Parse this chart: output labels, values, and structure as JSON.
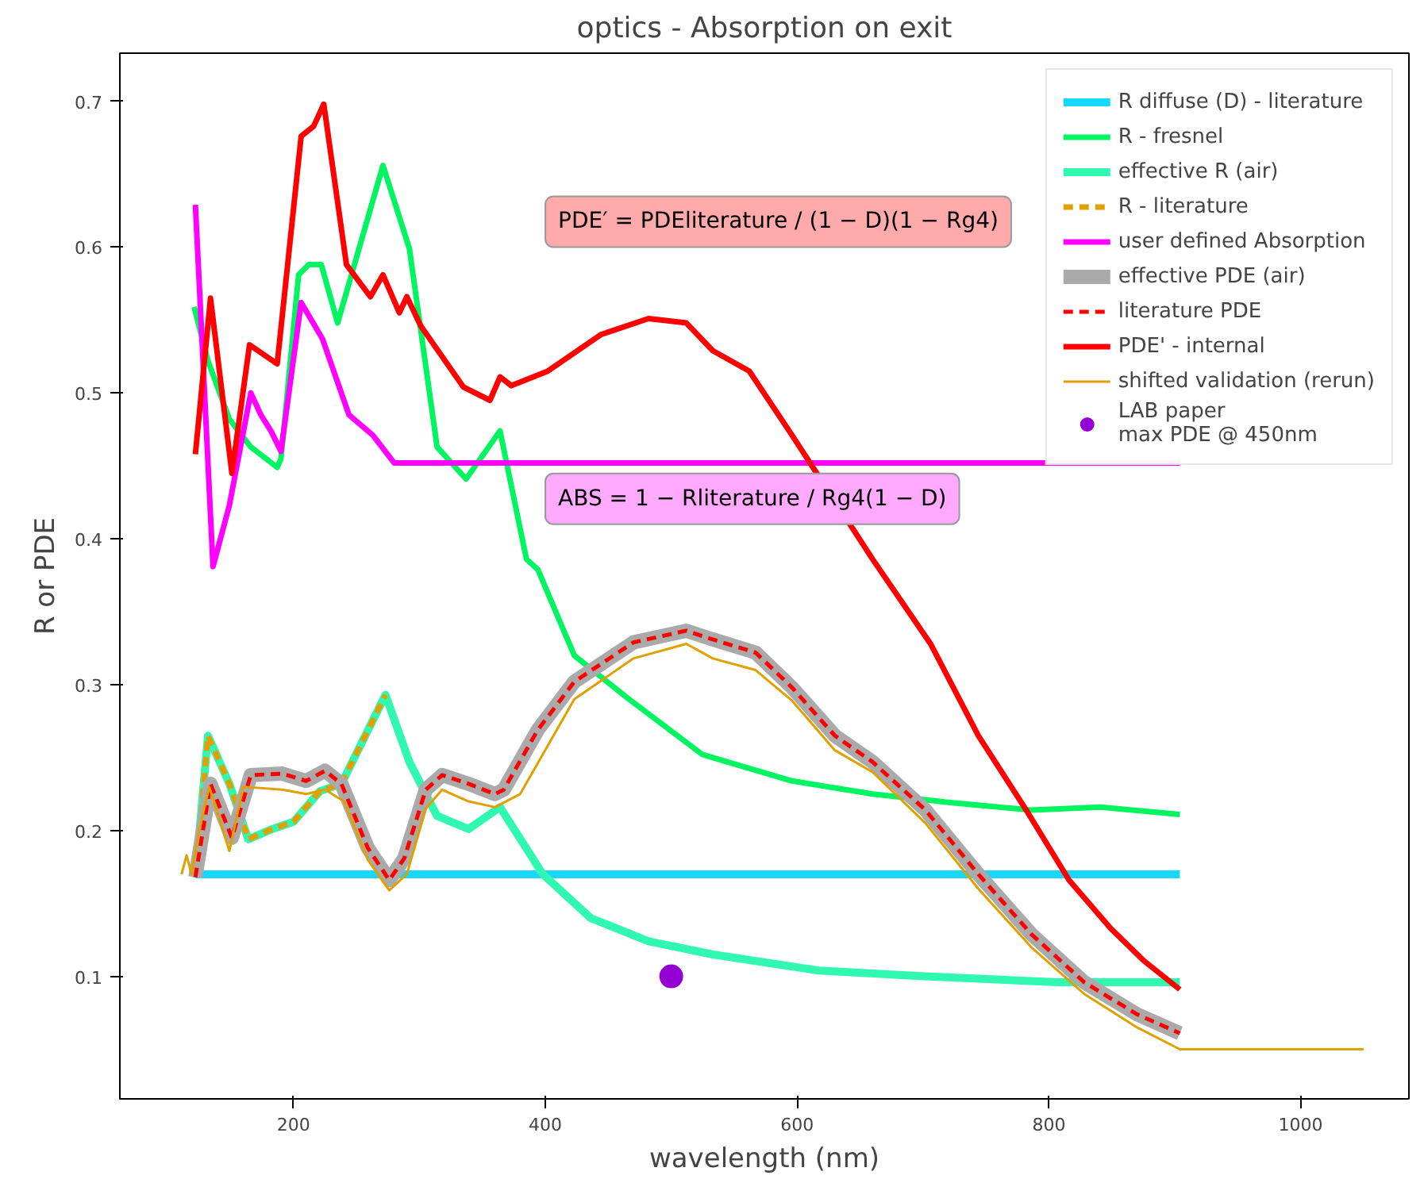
{
  "chart_data": {
    "type": "line",
    "title": "optics - Absorption on exit",
    "xlabel": "wavelength (nm)",
    "ylabel": "R or PDE",
    "xlim": [
      62,
      1086
    ],
    "ylim": [
      0.016,
      0.733
    ],
    "xticks": [
      200,
      400,
      600,
      800,
      1000
    ],
    "yticks": [
      0.1,
      0.2,
      0.3,
      0.4,
      0.5,
      0.6,
      0.7
    ],
    "grid": false,
    "legend": "top right",
    "annotations": [
      "PDE′ = PDEliterature / (1 − D)(1 − Rg4)",
      "ABS = 1 − Rliterature / Rg4(1 − D)"
    ],
    "series": [
      {
        "name": "R diffuse (D) - literature",
        "color": "#18d8ff",
        "x": [
          122,
          904
        ],
        "values": [
          0.17,
          0.17
        ]
      },
      {
        "name": "R - fresnel",
        "color": "#00f560",
        "x": [
          121,
          132,
          149,
          166,
          187,
          190,
          204,
          212,
          222,
          235,
          271,
          292,
          314,
          337,
          364,
          385,
          394,
          423,
          465,
          525,
          596,
          660,
          723,
          786,
          841,
          904
        ],
        "values": [
          0.559,
          0.522,
          0.482,
          0.463,
          0.449,
          0.455,
          0.581,
          0.588,
          0.588,
          0.548,
          0.656,
          0.599,
          0.463,
          0.441,
          0.474,
          0.386,
          0.379,
          0.32,
          0.291,
          0.252,
          0.234,
          0.225,
          0.219,
          0.214,
          0.216,
          0.211
        ]
      },
      {
        "name": "effective R (air)",
        "color": "#30f8b0",
        "x": [
          122,
          132,
          149,
          164,
          183,
          200,
          221,
          238,
          273,
          292,
          314,
          339,
          364,
          398,
          436,
          482,
          533,
          617,
          701,
          807,
          904
        ],
        "values": [
          0.168,
          0.265,
          0.232,
          0.194,
          0.201,
          0.206,
          0.227,
          0.232,
          0.293,
          0.247,
          0.21,
          0.201,
          0.216,
          0.17,
          0.14,
          0.124,
          0.115,
          0.104,
          0.1,
          0.096,
          0.096
        ]
      },
      {
        "name": "R - literature",
        "color": "#e0a000",
        "line_style": "dashed",
        "x": [
          122,
          132,
          149,
          164,
          183,
          200,
          221,
          238,
          273
        ],
        "values": [
          0.168,
          0.265,
          0.232,
          0.194,
          0.201,
          0.206,
          0.227,
          0.232,
          0.293
        ]
      },
      {
        "name": "user defined Absorption",
        "color": "#ff00ff",
        "x": [
          122,
          136,
          149,
          166,
          174,
          182,
          190,
          206,
          223,
          244,
          263,
          280,
          904
        ],
        "values": [
          0.629,
          0.381,
          0.423,
          0.5,
          0.485,
          0.474,
          0.46,
          0.562,
          0.537,
          0.485,
          0.471,
          0.452,
          0.452
        ]
      },
      {
        "name": "effective PDE (air)",
        "color": "#aaaaaa",
        "x": [
          122,
          134,
          151,
          166,
          191,
          210,
          225,
          238,
          259,
          276,
          288,
          305,
          318,
          339,
          360,
          367,
          394,
          423,
          470,
          491,
          512,
          533,
          567,
          596,
          630,
          660,
          702,
          744,
          786,
          828,
          870,
          904
        ],
        "values": [
          0.168,
          0.232,
          0.195,
          0.238,
          0.239,
          0.234,
          0.241,
          0.232,
          0.188,
          0.166,
          0.181,
          0.228,
          0.238,
          0.232,
          0.225,
          0.228,
          0.269,
          0.302,
          0.329,
          0.333,
          0.337,
          0.331,
          0.322,
          0.298,
          0.265,
          0.247,
          0.214,
          0.17,
          0.129,
          0.096,
          0.074,
          0.061
        ]
      },
      {
        "name": "literature PDE",
        "color": "#ff0000",
        "line_style": "dashed",
        "x": [
          122,
          134,
          151,
          166,
          191,
          210,
          225,
          238,
          259,
          276,
          288,
          305,
          318,
          339,
          360,
          367,
          394,
          423,
          470,
          491,
          512,
          533,
          567,
          596,
          630,
          660,
          702,
          744,
          786,
          828,
          870,
          904
        ],
        "values": [
          0.168,
          0.232,
          0.195,
          0.238,
          0.239,
          0.234,
          0.241,
          0.232,
          0.188,
          0.166,
          0.181,
          0.228,
          0.238,
          0.232,
          0.225,
          0.228,
          0.269,
          0.302,
          0.329,
          0.333,
          0.337,
          0.331,
          0.322,
          0.298,
          0.265,
          0.247,
          0.214,
          0.17,
          0.129,
          0.096,
          0.074,
          0.061
        ]
      },
      {
        "name": "PDE' - internal",
        "color": "#ff0000",
        "x": [
          122,
          134,
          151,
          165,
          187,
          206,
          216,
          224,
          242,
          261,
          271,
          284,
          290,
          301,
          335,
          356,
          364,
          373,
          402,
          444,
          482,
          512,
          533,
          562,
          596,
          660,
          706,
          744,
          782,
          816,
          849,
          875,
          904
        ],
        "values": [
          0.458,
          0.565,
          0.445,
          0.533,
          0.52,
          0.676,
          0.683,
          0.698,
          0.588,
          0.566,
          0.581,
          0.555,
          0.566,
          0.546,
          0.504,
          0.495,
          0.511,
          0.505,
          0.515,
          0.54,
          0.551,
          0.548,
          0.529,
          0.515,
          0.471,
          0.386,
          0.328,
          0.265,
          0.214,
          0.166,
          0.133,
          0.111,
          0.091
        ]
      },
      {
        "name": "shifted validation (rerun)",
        "color": "#e0a000",
        "x": [
          111,
          115,
          119,
          125,
          133,
          149,
          160,
          191,
          210,
          225,
          240,
          259,
          276,
          290,
          305,
          318,
          339,
          360,
          380,
          423,
          470,
          512,
          533,
          567,
          596,
          630,
          660,
          702,
          744,
          786,
          828,
          870,
          904,
          1050
        ],
        "values": [
          0.17,
          0.183,
          0.17,
          0.2,
          0.23,
          0.186,
          0.23,
          0.228,
          0.225,
          0.228,
          0.22,
          0.18,
          0.159,
          0.17,
          0.215,
          0.228,
          0.22,
          0.216,
          0.225,
          0.29,
          0.318,
          0.328,
          0.318,
          0.31,
          0.289,
          0.255,
          0.24,
          0.205,
          0.16,
          0.12,
          0.088,
          0.065,
          0.05,
          0.05
        ]
      },
      {
        "name": "LAB paper\nmax PDE @ 450nm",
        "type": "scatter",
        "marker": "circle",
        "color": "#9400d3",
        "x": [
          500
        ],
        "values": [
          0.1
        ]
      }
    ]
  }
}
